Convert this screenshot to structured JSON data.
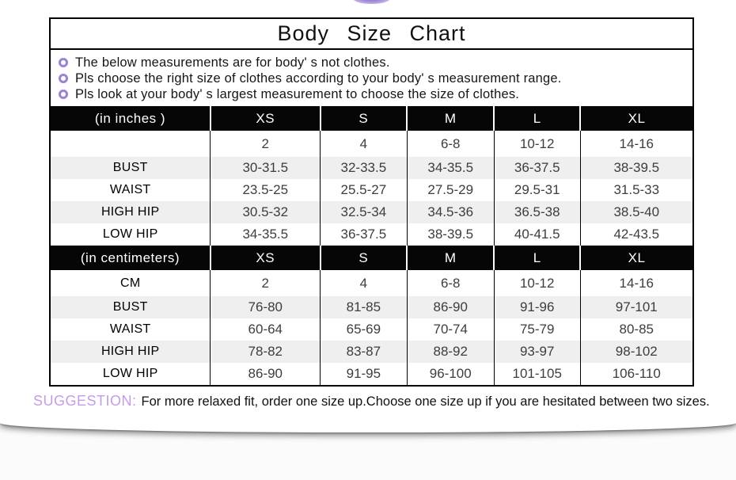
{
  "page": {
    "title": "Body Size Chart",
    "notes": [
      "The below measurements are for body' s not clothes.",
      "Pls choose the right size of clothes according to your body' s measurement range.",
      "Pls look at your body' s largest measurement to choose the size of clothes."
    ]
  },
  "inches_table": {
    "header": {
      "label": "(in inches )",
      "sizes": [
        "XS",
        "S",
        "M",
        "L",
        "XL"
      ]
    },
    "rows": [
      {
        "label": "",
        "values": [
          "2",
          "4",
          "6-8",
          "10-12",
          "14-16"
        ]
      },
      {
        "label": "BUST",
        "values": [
          "30-31.5",
          "32-33.5",
          "34-35.5",
          "36-37.5",
          "38-39.5"
        ]
      },
      {
        "label": "WAIST",
        "values": [
          "23.5-25",
          "25.5-27",
          "27.5-29",
          "29.5-31",
          "31.5-33"
        ]
      },
      {
        "label": "HIGH HIP",
        "values": [
          "30.5-32",
          "32.5-34",
          "34.5-36",
          "36.5-38",
          "38.5-40"
        ]
      },
      {
        "label": "LOW HIP",
        "values": [
          "34-35.5",
          "36-37.5",
          "38-39.5",
          "40-41.5",
          "42-43.5"
        ]
      }
    ]
  },
  "cm_table": {
    "header": {
      "label": "(in centimeters)",
      "sizes": [
        "XS",
        "S",
        "M",
        "L",
        "XL"
      ]
    },
    "rows": [
      {
        "label": "CM",
        "values": [
          "2",
          "4",
          "6-8",
          "10-12",
          "14-16"
        ]
      },
      {
        "label": "BUST",
        "values": [
          "76-80",
          "81-85",
          "86-90",
          "91-96",
          "97-101"
        ]
      },
      {
        "label": "WAIST",
        "values": [
          "60-64",
          "65-69",
          "70-74",
          "75-79",
          "80-85"
        ]
      },
      {
        "label": "HIGH HIP",
        "values": [
          "78-82",
          "83-87",
          "88-92",
          "93-97",
          "98-102"
        ]
      },
      {
        "label": "LOW HIP",
        "values": [
          "86-90",
          "91-95",
          "96-100",
          "101-105",
          "106-110"
        ]
      }
    ]
  },
  "suggestion": {
    "label": "SUGGESTION:",
    "text": "For more relaxed fit, order one size up.Choose one size up if you are hesitated between two sizes."
  },
  "colors": {
    "bullet_color": "#9b82d2",
    "suggestion_color": "#c69ce8",
    "header_bg": "#060606",
    "row_alt_bg": "#efefef"
  }
}
